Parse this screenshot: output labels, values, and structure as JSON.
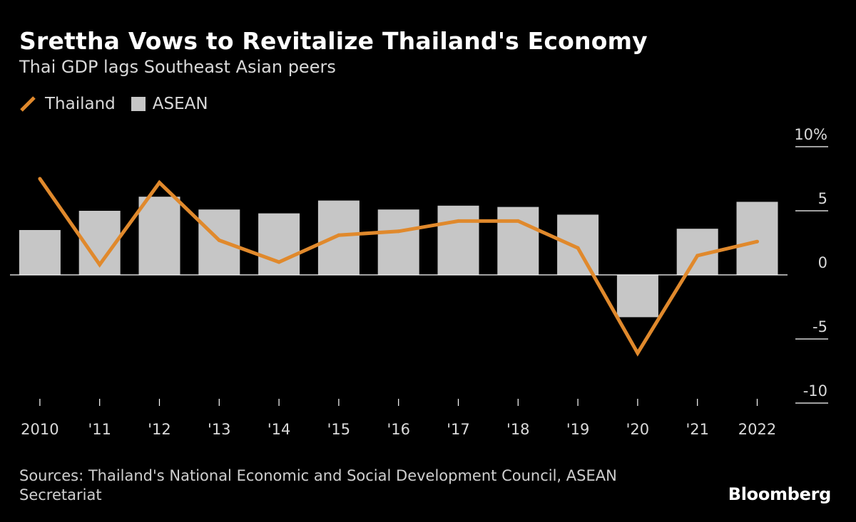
{
  "colors": {
    "background": "#000000",
    "thailand_line": "#e0892c",
    "asean_bar": "#c6c6c6",
    "axis_text": "#d9d9d9"
  },
  "chart_data": {
    "type": "bar",
    "title": "Srettha Vows to Revitalize Thailand's Economy",
    "subtitle": "Thai GDP lags Southeast Asian peers",
    "categories": [
      "2010",
      "'11",
      "'12",
      "'13",
      "'14",
      "'15",
      "'16",
      "'17",
      "'18",
      "'19",
      "'20",
      "'21",
      "2022"
    ],
    "series": [
      {
        "name": "Thailand",
        "type": "line",
        "color": "#e0892c",
        "values": [
          7.5,
          0.8,
          7.2,
          2.7,
          1.0,
          3.1,
          3.4,
          4.2,
          4.2,
          2.1,
          -6.1,
          1.5,
          2.6
        ]
      },
      {
        "name": "ASEAN",
        "type": "bar",
        "color": "#c6c6c6",
        "values": [
          3.5,
          5.0,
          6.1,
          5.1,
          4.8,
          5.8,
          5.1,
          5.4,
          5.3,
          4.7,
          -3.3,
          3.6,
          5.7
        ]
      }
    ],
    "y_ticks": [
      "10%",
      "5",
      "0",
      "-5",
      "-10"
    ],
    "y_tick_values": [
      10,
      5,
      0,
      -5,
      -10
    ],
    "ylim": [
      -10,
      10
    ],
    "xlabel": "",
    "ylabel": "",
    "legend_position": "top-left",
    "grid": false
  },
  "legend": {
    "thailand": "Thailand",
    "asean": "ASEAN"
  },
  "footer": {
    "source": "Sources: Thailand's National Economic and Social Development Council, ASEAN Secretariat",
    "logo": "Bloomberg"
  }
}
